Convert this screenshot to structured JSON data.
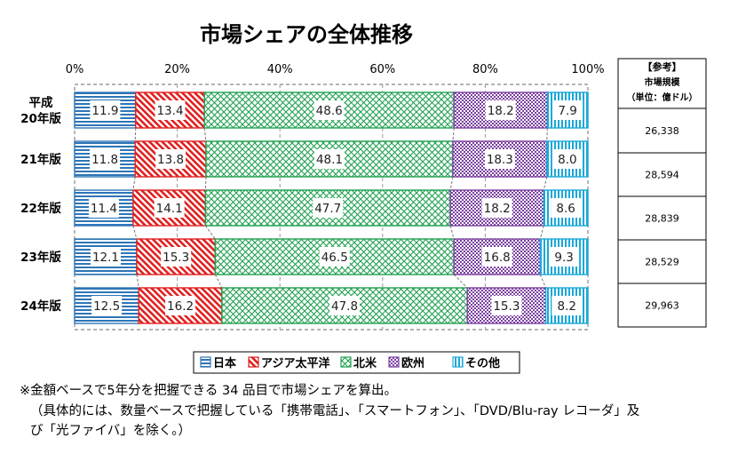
{
  "chart_data": {
    "type": "bar",
    "orientation": "horizontal",
    "stacked": true,
    "title": "市場シェアの全体推移",
    "x_ticks": [
      "0%",
      "20%",
      "40%",
      "60%",
      "80%",
      "100%"
    ],
    "xlim": [
      0,
      100
    ],
    "categories": [
      [
        "平成",
        "20年版"
      ],
      [
        "21年版"
      ],
      [
        "22年版"
      ],
      [
        "23年版"
      ],
      [
        "24年版"
      ]
    ],
    "series": [
      {
        "name": "日本",
        "color": "#2e75b6",
        "pattern": "hstripe",
        "values": [
          11.9,
          11.8,
          11.4,
          12.1,
          12.5
        ]
      },
      {
        "name": "アジア太平洋",
        "color": "#e02020",
        "pattern": "diag",
        "values": [
          13.4,
          13.8,
          14.1,
          15.3,
          16.2
        ]
      },
      {
        "name": "北米",
        "color": "#20a050",
        "pattern": "cross",
        "values": [
          48.6,
          48.1,
          47.7,
          46.5,
          47.8
        ]
      },
      {
        "name": "欧州",
        "color": "#7a3fa0",
        "pattern": "check",
        "values": [
          18.2,
          18.3,
          18.2,
          16.8,
          15.3
        ]
      },
      {
        "name": "その他",
        "color": "#1aa8d8",
        "pattern": "vstripe",
        "values": [
          7.9,
          8.0,
          8.6,
          9.3,
          8.2
        ]
      }
    ],
    "side_table": {
      "header": [
        "【参考】",
        "市場規模",
        "（単位：億ドル）"
      ],
      "values": [
        "26,338",
        "28,594",
        "28,839",
        "28,529",
        "29,963"
      ]
    },
    "legend_position": "bottom"
  },
  "notes": {
    "line1": "※金額ベースで5年分を把握できる 34 品目で市場シェアを算出。",
    "line2": "（具体的には、数量ベースで把握している「携帯電話」、「スマートフォン」、「DVD/Blu-ray レコーダ」及",
    "line3": "び「光ファイバ」を除く。）"
  }
}
